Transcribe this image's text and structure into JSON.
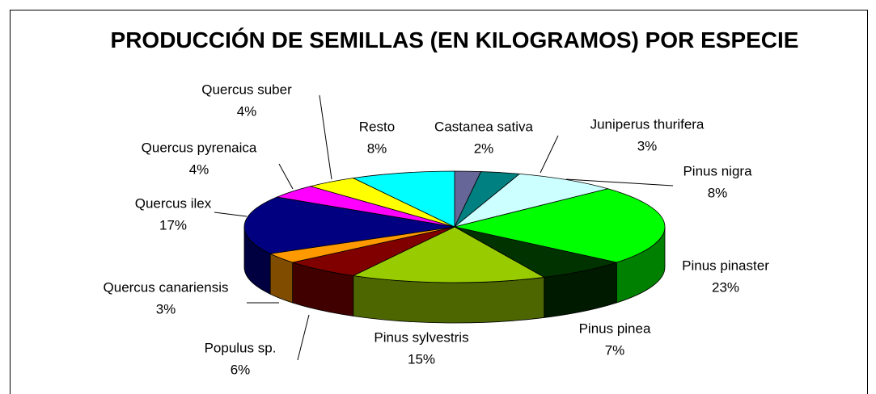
{
  "chart_data": {
    "type": "pie3d",
    "title": "PRODUCCIÓN DE SEMILLAS (EN KILOGRAMOS) POR ESPECIE",
    "categories": [
      "Castanea sativa",
      "Juniperus thurifera",
      "Pinus nigra",
      "Pinus pinaster",
      "Pinus pinea",
      "Pinus sylvestris",
      "Populus sp.",
      "Quercus canariensis",
      "Quercus ilex",
      "Quercus pyrenaica",
      "Quercus suber",
      "Resto"
    ],
    "values": [
      2,
      3,
      8,
      23,
      7,
      15,
      6,
      3,
      17,
      4,
      4,
      8
    ],
    "value_labels": [
      "2%",
      "3%",
      "8%",
      "23%",
      "7%",
      "15%",
      "6%",
      "3%",
      "17%",
      "4%",
      "4%",
      "8%"
    ],
    "colors": [
      "#666699",
      "#008080",
      "#ccffff",
      "#00ff00",
      "#003300",
      "#99cc00",
      "#800000",
      "#ff9900",
      "#000080",
      "#ff00ff",
      "#ffff00",
      "#00ffff"
    ]
  }
}
